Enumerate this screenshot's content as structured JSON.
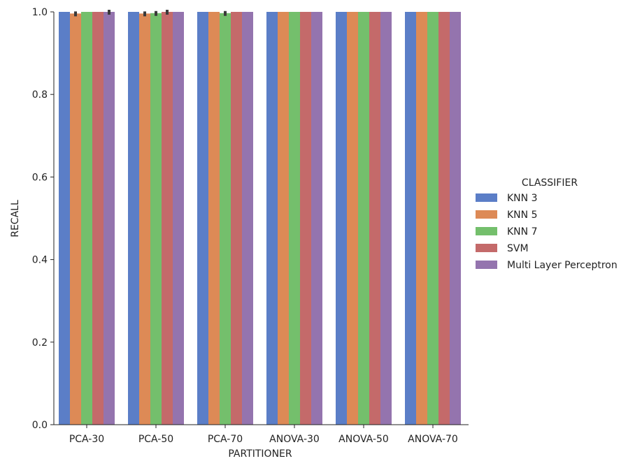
{
  "chart_data": {
    "type": "bar",
    "xlabel": "PARTITIONER",
    "ylabel": "RECALL",
    "ylim": [
      0.0,
      1.0
    ],
    "yticks": [
      "0.0",
      "0.2",
      "0.4",
      "0.6",
      "0.8",
      "1.0"
    ],
    "grid": false,
    "legend": {
      "title": "CLASSIFIER",
      "placement": "right"
    },
    "categories": [
      "PCA-30",
      "PCA-50",
      "PCA-70",
      "ANOVA-30",
      "ANOVA-50",
      "ANOVA-70"
    ],
    "series": [
      {
        "name": "KNN 3",
        "color": "#5b7ec7",
        "values": [
          1.0,
          1.0,
          1.0,
          1.0,
          1.0,
          1.0
        ],
        "error": [
          false,
          false,
          false,
          false,
          false,
          false
        ]
      },
      {
        "name": "KNN 5",
        "color": "#dd8a56",
        "values": [
          0.996,
          0.996,
          1.0,
          1.0,
          1.0,
          1.0
        ],
        "error": [
          true,
          true,
          false,
          false,
          false,
          false
        ]
      },
      {
        "name": "KNN 7",
        "color": "#74bf6c",
        "values": [
          1.0,
          0.997,
          0.997,
          1.0,
          1.0,
          1.0
        ],
        "error": [
          false,
          true,
          true,
          false,
          false,
          false
        ]
      },
      {
        "name": "SVM",
        "color": "#c46a6a",
        "values": [
          1.0,
          1.0,
          1.0,
          1.0,
          1.0,
          1.0
        ],
        "error": [
          false,
          true,
          false,
          false,
          false,
          false
        ]
      },
      {
        "name": "Multi Layer Perceptron",
        "color": "#9474ae",
        "values": [
          1.0,
          1.0,
          1.0,
          1.0,
          1.0,
          1.0
        ],
        "error": [
          true,
          false,
          false,
          false,
          false,
          false
        ]
      }
    ]
  }
}
